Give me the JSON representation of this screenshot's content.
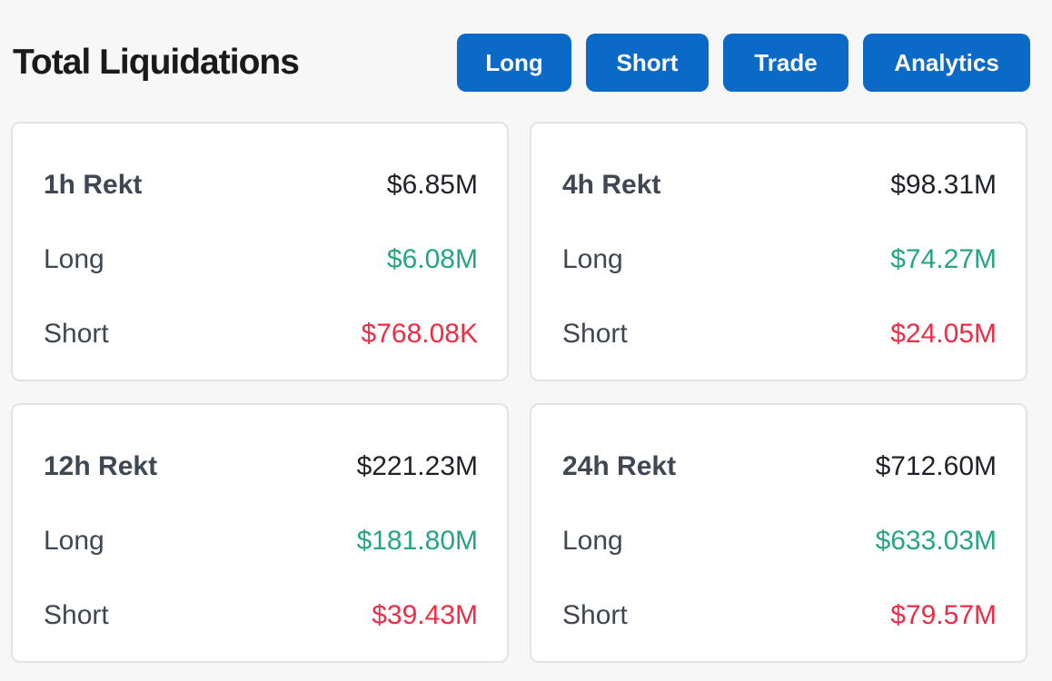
{
  "header": {
    "title": "Total Liquidations",
    "buttons": {
      "long": "Long",
      "short": "Short",
      "trade": "Trade",
      "analytics": "Analytics"
    }
  },
  "cards": [
    {
      "title": "1h Rekt",
      "total": "$6.85M",
      "long_label": "Long",
      "long": "$6.08M",
      "short_label": "Short",
      "short": "$768.08K"
    },
    {
      "title": "4h Rekt",
      "total": "$98.31M",
      "long_label": "Long",
      "long": "$74.27M",
      "short_label": "Short",
      "short": "$24.05M"
    },
    {
      "title": "12h Rekt",
      "total": "$221.23M",
      "long_label": "Long",
      "long": "$181.80M",
      "short_label": "Short",
      "short": "$39.43M"
    },
    {
      "title": "24h Rekt",
      "total": "$712.60M",
      "long_label": "Long",
      "long": "$633.03M",
      "short_label": "Short",
      "short": "$79.57M"
    }
  ],
  "colors": {
    "button_bg": "#0b69c7",
    "long_green": "#25a585",
    "short_red": "#ee2d45",
    "card_border": "#e3e3e6",
    "page_bg": "#f7f7f7"
  }
}
